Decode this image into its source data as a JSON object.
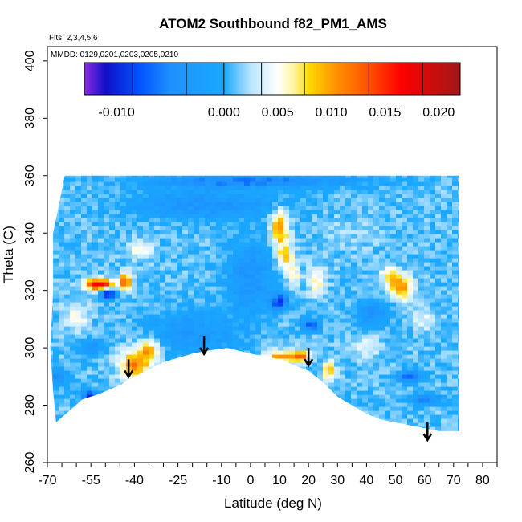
{
  "chart_data": {
    "type": "heatmap",
    "title": "ATOM2 Southbound f82_PM1_AMS",
    "subtitle_flights": "Flts: 2,3,4,5,6",
    "subtitle_dates": "MMDD: 0129,0201,0203,0205,0210",
    "xlabel": "Latitude (deg N)",
    "ylabel": "Theta (C)",
    "xlim": [
      -70,
      85
    ],
    "ylim": [
      260,
      405
    ],
    "x_ticks": [
      -70,
      -55,
      -40,
      -25,
      -10,
      0,
      10,
      20,
      30,
      40,
      50,
      60,
      70,
      80
    ],
    "x_tick_labels": [
      "-70",
      "-55",
      "-40",
      "-25",
      "-10",
      "0",
      "10",
      "20",
      "30",
      "40",
      "50",
      "60",
      "70",
      "80"
    ],
    "y_ticks": [
      260,
      280,
      300,
      320,
      340,
      360,
      380,
      400
    ],
    "y_tick_labels": [
      "260",
      "280",
      "300",
      "320",
      "340",
      "360",
      "380",
      "400"
    ],
    "colorbar": {
      "range": [
        -0.013,
        0.022
      ],
      "ticks": [
        -0.01,
        0.0,
        0.005,
        0.01,
        0.015,
        0.02
      ],
      "tick_labels": [
        "-0.010",
        "0.000",
        "0.005",
        "0.010",
        "0.015",
        "0.020"
      ],
      "stops": [
        {
          "v": -0.013,
          "c": "#8a2be2"
        },
        {
          "v": -0.011,
          "c": "#1010c8"
        },
        {
          "v": -0.008,
          "c": "#0050ff"
        },
        {
          "v": -0.005,
          "c": "#1e90ff"
        },
        {
          "v": 0.0,
          "c": "#1aa8ff"
        },
        {
          "v": 0.0025,
          "c": "#b8e4ff"
        },
        {
          "v": 0.005,
          "c": "#ffffff"
        },
        {
          "v": 0.0065,
          "c": "#fff5a0"
        },
        {
          "v": 0.008,
          "c": "#ffd700"
        },
        {
          "v": 0.0105,
          "c": "#ff9000"
        },
        {
          "v": 0.0135,
          "c": "#ff5000"
        },
        {
          "v": 0.0165,
          "c": "#ff0000"
        },
        {
          "v": 0.022,
          "c": "#a01818"
        }
      ]
    },
    "data_region": {
      "top_theta": 360,
      "bottom_boundary": [
        [
          -67,
          274
        ],
        [
          -58,
          282
        ],
        [
          -52,
          284
        ],
        [
          -45,
          287
        ],
        [
          -40,
          290
        ],
        [
          -30,
          295
        ],
        [
          -20,
          298
        ],
        [
          -15,
          299
        ],
        [
          -8,
          300
        ],
        [
          0,
          298
        ],
        [
          5,
          297
        ],
        [
          10,
          296
        ],
        [
          15,
          294
        ],
        [
          20,
          292
        ],
        [
          25,
          288
        ],
        [
          30,
          283
        ],
        [
          35,
          280
        ],
        [
          40,
          277
        ],
        [
          45,
          275
        ],
        [
          50,
          274
        ],
        [
          55,
          273
        ],
        [
          60,
          272
        ],
        [
          65,
          271
        ],
        [
          71,
          271
        ]
      ],
      "left_boundary": [
        [
          -64,
          360
        ],
        [
          -66,
          350
        ],
        [
          -68,
          340
        ],
        [
          -68,
          320
        ],
        [
          -69,
          300
        ],
        [
          -68,
          285
        ],
        [
          -67,
          274
        ]
      ],
      "right_boundary": [
        [
          72,
          360
        ],
        [
          72,
          330
        ],
        [
          72,
          300
        ],
        [
          72,
          271
        ]
      ]
    },
    "background_value": 0.001,
    "features": [
      {
        "x": -52,
        "y": 322,
        "rx": 5,
        "ry": 2,
        "value": 0.018
      },
      {
        "x": -43,
        "y": 323,
        "rx": 2,
        "ry": 3,
        "value": 0.014
      },
      {
        "x": -49,
        "y": 319,
        "rx": 3,
        "ry": 2,
        "value": -0.011
      },
      {
        "x": -40,
        "y": 294,
        "rx": 5,
        "ry": 5,
        "value": 0.011
      },
      {
        "x": -35,
        "y": 299,
        "rx": 4,
        "ry": 4,
        "value": 0.009
      },
      {
        "x": -38,
        "y": 334,
        "rx": 4,
        "ry": 3,
        "value": 0.006
      },
      {
        "x": -60,
        "y": 311,
        "rx": 4,
        "ry": 5,
        "value": 0.005
      },
      {
        "x": -55,
        "y": 300,
        "rx": 4,
        "ry": 3,
        "value": -0.004
      },
      {
        "x": -55,
        "y": 283,
        "rx": 3,
        "ry": 2,
        "value": -0.01
      },
      {
        "x": -66,
        "y": 290,
        "rx": 3,
        "ry": 3,
        "value": -0.005
      },
      {
        "x": 10,
        "y": 342,
        "rx": 3,
        "ry": 6,
        "value": 0.011
      },
      {
        "x": 12,
        "y": 332,
        "rx": 3,
        "ry": 5,
        "value": 0.008
      },
      {
        "x": 15,
        "y": 325,
        "rx": 2,
        "ry": 4,
        "value": 0.006
      },
      {
        "x": 17,
        "y": 297,
        "rx": 3,
        "ry": 2,
        "value": 0.012
      },
      {
        "x": 10,
        "y": 297,
        "rx": 5,
        "ry": 2,
        "value": 0.01
      },
      {
        "x": 27,
        "y": 292,
        "rx": 2,
        "ry": 3,
        "value": 0.01
      },
      {
        "x": 23,
        "y": 323,
        "rx": 3,
        "ry": 5,
        "value": 0.006
      },
      {
        "x": 10,
        "y": 316,
        "rx": 3,
        "ry": 3,
        "value": -0.009
      },
      {
        "x": 21,
        "y": 308,
        "rx": 3,
        "ry": 2,
        "value": -0.008
      },
      {
        "x": 0,
        "y": 325,
        "rx": 8,
        "ry": 12,
        "value": -0.004
      },
      {
        "x": -15,
        "y": 350,
        "rx": 25,
        "ry": 5,
        "value": -0.004
      },
      {
        "x": 0,
        "y": 358,
        "rx": 35,
        "ry": 2,
        "value": -0.006
      },
      {
        "x": 52,
        "y": 321,
        "rx": 4,
        "ry": 4,
        "value": 0.011
      },
      {
        "x": 48,
        "y": 325,
        "rx": 3,
        "ry": 3,
        "value": 0.007
      },
      {
        "x": 60,
        "y": 310,
        "rx": 4,
        "ry": 4,
        "value": 0.004
      },
      {
        "x": 42,
        "y": 312,
        "rx": 6,
        "ry": 4,
        "value": -0.004
      },
      {
        "x": 55,
        "y": 290,
        "rx": 4,
        "ry": 2,
        "value": -0.008
      },
      {
        "x": 60,
        "y": 282,
        "rx": 6,
        "ry": 2,
        "value": -0.005
      },
      {
        "x": 40,
        "y": 300,
        "rx": 5,
        "ry": 4,
        "value": 0.004
      },
      {
        "x": -20,
        "y": 305,
        "rx": 15,
        "ry": 8,
        "value": -0.003
      },
      {
        "x": 35,
        "y": 340,
        "rx": 10,
        "ry": 6,
        "value": 0.002
      }
    ],
    "arrows": [
      {
        "lat": -42,
        "theta": 296
      },
      {
        "lat": -16,
        "theta": 304
      },
      {
        "lat": 20,
        "theta": 300
      },
      {
        "lat": 61,
        "theta": 274
      }
    ]
  }
}
